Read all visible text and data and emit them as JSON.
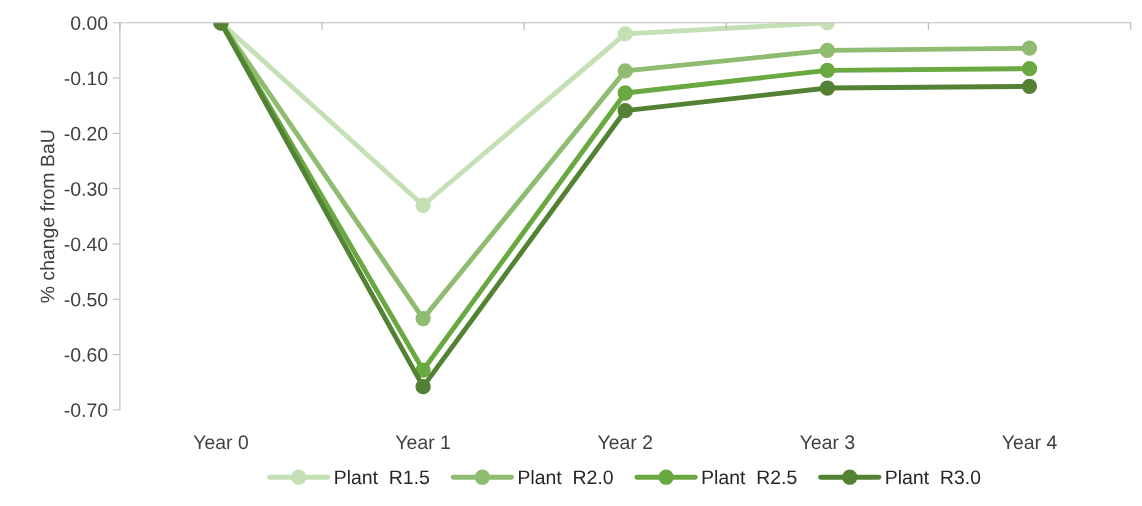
{
  "chart_data": {
    "type": "line",
    "ylabel": "% change from BaU",
    "categories": [
      "Year 0",
      "Year 1",
      "Year 2",
      "Year 3",
      "Year 4"
    ],
    "series": [
      {
        "name": "Plant  R1.5",
        "color": "#c5e0b4",
        "values": [
          0,
          -0.33,
          -0.02,
          0.0,
          null
        ]
      },
      {
        "name": "Plant  R2.0",
        "color": "#8fbc70",
        "values": [
          0,
          -0.535,
          -0.087,
          -0.05,
          -0.046
        ]
      },
      {
        "name": "Plant  R2.5",
        "color": "#6aa842",
        "values": [
          0,
          -0.628,
          -0.127,
          -0.086,
          -0.083
        ]
      },
      {
        "name": "Plant  R3.0",
        "color": "#548235",
        "values": [
          0,
          -0.658,
          -0.159,
          -0.118,
          -0.115
        ]
      }
    ],
    "ylim": [
      -0.7,
      0.0
    ],
    "yticks": [
      {
        "value": -0.7,
        "label": "-0.70"
      },
      {
        "value": -0.6,
        "label": "-0.60"
      },
      {
        "value": -0.5,
        "label": "-0.50"
      },
      {
        "value": -0.4,
        "label": "-0.40"
      },
      {
        "value": -0.3,
        "label": "-0.30"
      },
      {
        "value": -0.2,
        "label": "-0.20"
      },
      {
        "value": -0.1,
        "label": "-0.10"
      },
      {
        "value": 0.0,
        "label": "0.00"
      }
    ],
    "grid": false,
    "legend": "bottom",
    "marker": "circle",
    "line_style": "solid"
  }
}
